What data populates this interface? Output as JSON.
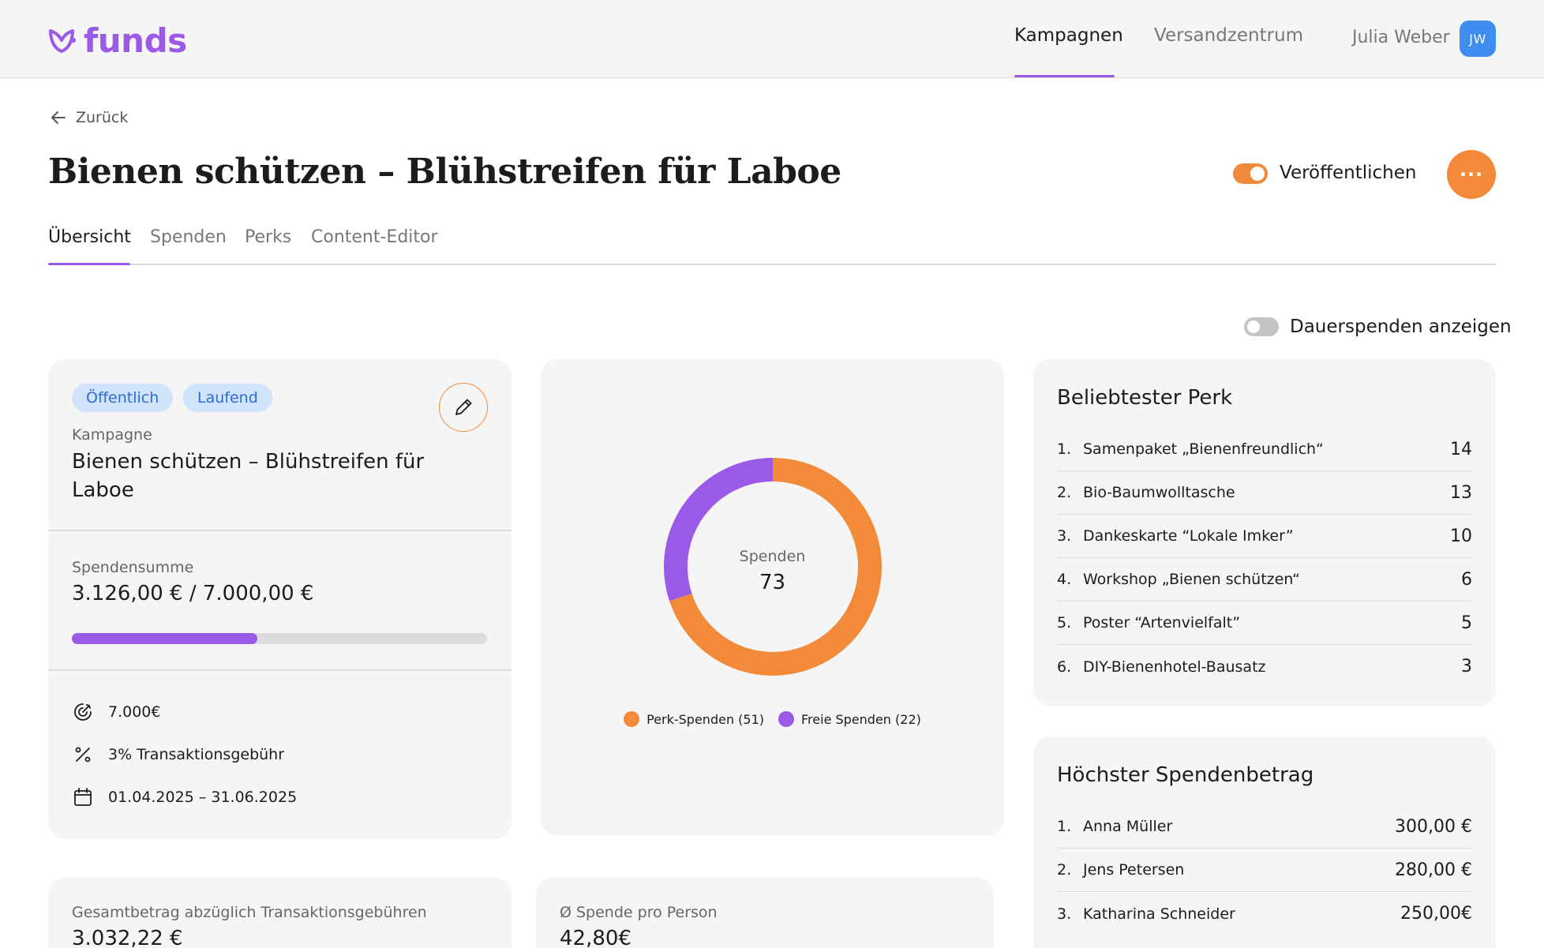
{
  "header": {
    "logo_text": "funds",
    "nav": [
      {
        "label": "Kampagnen",
        "active": true
      },
      {
        "label": "Versandzentrum",
        "active": false
      }
    ],
    "user_name": "Julia Weber",
    "avatar_initials": "JW"
  },
  "page": {
    "back_label": "Zurück",
    "title": "Bienen schützen – Blühstreifen für Laboe",
    "publish_label": "Veröffentlichen",
    "publish_on": true,
    "more_label": "···",
    "tabs": [
      {
        "label": "Übersicht",
        "active": true
      },
      {
        "label": "Spenden",
        "active": false
      },
      {
        "label": "Perks",
        "active": false
      },
      {
        "label": "Content-Editor",
        "active": false
      }
    ],
    "recurring_label": "Dauerspenden anzeigen",
    "recurring_on": false
  },
  "campaign_card": {
    "badges": [
      "Öffentlich",
      "Laufend"
    ],
    "campaign_label": "Kampagne",
    "campaign_name": "Bienen schützen – Blühstreifen für Laboe",
    "sum_label": "Spendensumme",
    "sum_value": "3.126,00 € / 7.000,00 €",
    "progress_fraction": 0.4466,
    "goal": "7.000€",
    "fee": "3% Transaktionsgebühr",
    "period": "01.04.2025 – 31.06.2025"
  },
  "chart_card": {
    "center_label": "Spenden",
    "center_value": "73",
    "legend": [
      {
        "label": "Perk-Spenden (51)",
        "color": "#f28a3a"
      },
      {
        "label": "Freie Spenden (22)",
        "color": "#9b59e8"
      }
    ]
  },
  "chart_data": {
    "type": "pie",
    "series": [
      {
        "name": "Perk-Spenden",
        "value": 51,
        "color": "#f28a3a"
      },
      {
        "name": "Freie Spenden",
        "value": 22,
        "color": "#9b59e8"
      }
    ],
    "total": 73
  },
  "perk_card": {
    "title": "Beliebtester Perk",
    "items": [
      {
        "rank": "1.",
        "name": "Samenpaket „Bienenfreundlich“",
        "value": "14"
      },
      {
        "rank": "2.",
        "name": "Bio-Baumwolltasche",
        "value": "13"
      },
      {
        "rank": "3.",
        "name": "Dankeskarte “Lokale Imker”",
        "value": "10"
      },
      {
        "rank": "4.",
        "name": "Workshop „Bienen schützen“",
        "value": "6"
      },
      {
        "rank": "5.",
        "name": "Poster “Artenvielfalt”",
        "value": "5"
      },
      {
        "rank": "6.",
        "name": "DIY-Bienenhotel-Bausatz",
        "value": "3"
      }
    ]
  },
  "top_donation_card": {
    "title": "Höchster Spendenbetrag",
    "items": [
      {
        "rank": "1.",
        "name": "Anna Müller",
        "value": "300,00 €"
      },
      {
        "rank": "2.",
        "name": "Jens Petersen",
        "value": "280,00 €"
      },
      {
        "rank": "3.",
        "name": "Katharina Schneider",
        "value": "250,00€"
      }
    ]
  },
  "net_card": {
    "label": "Gesamtbetrag abzüglich Transaktionsgebühren",
    "value": "3.032,22 €"
  },
  "avg_card": {
    "label": "Ø Spende pro Person",
    "value": "42,80€"
  }
}
